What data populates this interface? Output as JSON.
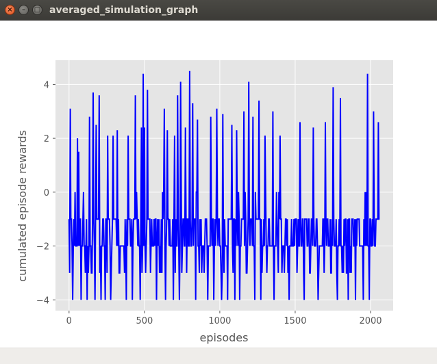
{
  "window": {
    "title": "averaged_simulation_graph",
    "controls": {
      "close_icon": "close-icon",
      "minimize_icon": "minimize-icon",
      "maximize_icon": "maximize-icon",
      "close_glyph": "×",
      "minimize_glyph": "–",
      "maximize_glyph": "□"
    }
  },
  "chart_data": {
    "type": "line",
    "title": "",
    "xlabel": "episodes",
    "ylabel": "cumulated episode rewards",
    "xlim": [
      -90,
      2150
    ],
    "ylim": [
      -4.4,
      4.9
    ],
    "xticks": [
      0,
      500,
      1000,
      1500,
      2000
    ],
    "yticks": [
      -4,
      -2,
      0,
      2,
      4
    ],
    "grid": true,
    "style": "ggplot",
    "colors": {
      "line": "#0000ff",
      "plot_background": "#e5e5e5",
      "grid": "#ffffff",
      "tick_text": "#555555"
    },
    "series": [
      {
        "values_note_free": true,
        "x_start": 0,
        "x_end": 2060,
        "baseline_band": [
          -2,
          -1
        ],
        "spikes_up": [
          {
            "x": 8,
            "y": 3.1
          },
          {
            "x": 40,
            "y": 0
          },
          {
            "x": 55,
            "y": 2
          },
          {
            "x": 62,
            "y": 1.5
          },
          {
            "x": 95,
            "y": 0
          },
          {
            "x": 135,
            "y": 2.8
          },
          {
            "x": 160,
            "y": 3.7
          },
          {
            "x": 180,
            "y": 2.5
          },
          {
            "x": 200,
            "y": 3.6
          },
          {
            "x": 255,
            "y": 2.1
          },
          {
            "x": 290,
            "y": 2.1
          },
          {
            "x": 320,
            "y": 2.3
          },
          {
            "x": 330,
            "y": 3.8
          },
          {
            "x": 390,
            "y": 2.1
          },
          {
            "x": 440,
            "y": 3.6
          },
          {
            "x": 480,
            "y": 2.4
          },
          {
            "x": 490,
            "y": 4.4
          },
          {
            "x": 500,
            "y": 2.4
          },
          {
            "x": 520,
            "y": 3.8
          },
          {
            "x": 620,
            "y": 0
          },
          {
            "x": 630,
            "y": 3.1
          },
          {
            "x": 650,
            "y": 2.3
          },
          {
            "x": 700,
            "y": 2.1
          },
          {
            "x": 720,
            "y": 3.6
          },
          {
            "x": 740,
            "y": 4.1
          },
          {
            "x": 770,
            "y": 2.4
          },
          {
            "x": 800,
            "y": 4.5
          },
          {
            "x": 820,
            "y": 3.3
          },
          {
            "x": 850,
            "y": 2.7
          },
          {
            "x": 880,
            "y": 4.1
          },
          {
            "x": 940,
            "y": 2.8
          },
          {
            "x": 980,
            "y": 3.1
          },
          {
            "x": 1020,
            "y": 2.9
          },
          {
            "x": 1080,
            "y": 2.5
          },
          {
            "x": 1110,
            "y": 2.3
          },
          {
            "x": 1160,
            "y": 3
          },
          {
            "x": 1190,
            "y": 4.1
          },
          {
            "x": 1220,
            "y": 2.8
          },
          {
            "x": 1260,
            "y": 3.4
          },
          {
            "x": 1300,
            "y": 2.1
          },
          {
            "x": 1350,
            "y": 3
          },
          {
            "x": 1400,
            "y": 2.1
          },
          {
            "x": 1460,
            "y": 2.5
          },
          {
            "x": 1530,
            "y": 2.6
          },
          {
            "x": 1560,
            "y": 4.1
          },
          {
            "x": 1620,
            "y": 2.4
          },
          {
            "x": 1650,
            "y": 3.1
          },
          {
            "x": 1700,
            "y": 2.6
          },
          {
            "x": 1750,
            "y": 3.9
          },
          {
            "x": 1800,
            "y": 3.5
          },
          {
            "x": 1850,
            "y": 2.4
          },
          {
            "x": 1900,
            "y": 2.4
          },
          {
            "x": 1950,
            "y": 2.9
          },
          {
            "x": 1980,
            "y": 4.4
          },
          {
            "x": 2020,
            "y": 3
          },
          {
            "x": 2050,
            "y": 2.6
          }
        ],
        "spikes_down": [
          {
            "x": 25,
            "y": -4
          },
          {
            "x": 80,
            "y": -4
          },
          {
            "x": 120,
            "y": -4
          },
          {
            "x": 170,
            "y": -4
          },
          {
            "x": 210,
            "y": -4
          },
          {
            "x": 240,
            "y": -4
          },
          {
            "x": 275,
            "y": -4
          },
          {
            "x": 330,
            "y": -3
          },
          {
            "x": 380,
            "y": -4
          },
          {
            "x": 420,
            "y": -4
          },
          {
            "x": 470,
            "y": -4
          },
          {
            "x": 540,
            "y": -3
          },
          {
            "x": 580,
            "y": -4
          },
          {
            "x": 640,
            "y": -4
          },
          {
            "x": 690,
            "y": -4
          },
          {
            "x": 730,
            "y": -4
          },
          {
            "x": 780,
            "y": -3
          },
          {
            "x": 840,
            "y": -4
          },
          {
            "x": 880,
            "y": -3
          },
          {
            "x": 920,
            "y": -4
          },
          {
            "x": 960,
            "y": -4
          },
          {
            "x": 1010,
            "y": -4
          },
          {
            "x": 1050,
            "y": -4
          },
          {
            "x": 1100,
            "y": -4
          },
          {
            "x": 1130,
            "y": -4
          },
          {
            "x": 1180,
            "y": -3
          },
          {
            "x": 1230,
            "y": -4
          },
          {
            "x": 1270,
            "y": -4
          },
          {
            "x": 1310,
            "y": -3
          },
          {
            "x": 1360,
            "y": -4
          },
          {
            "x": 1410,
            "y": -3
          },
          {
            "x": 1460,
            "y": -4
          },
          {
            "x": 1510,
            "y": -3
          },
          {
            "x": 1560,
            "y": -4
          },
          {
            "x": 1600,
            "y": -3
          },
          {
            "x": 1650,
            "y": -4
          },
          {
            "x": 1690,
            "y": -3
          },
          {
            "x": 1740,
            "y": -3
          },
          {
            "x": 1780,
            "y": -4
          },
          {
            "x": 1820,
            "y": -3
          },
          {
            "x": 1850,
            "y": -4
          },
          {
            "x": 1900,
            "y": -4
          },
          {
            "x": 1950,
            "y": -4
          },
          {
            "x": 1990,
            "y": -4
          },
          {
            "x": 2030,
            "y": -2
          }
        ]
      }
    ]
  }
}
